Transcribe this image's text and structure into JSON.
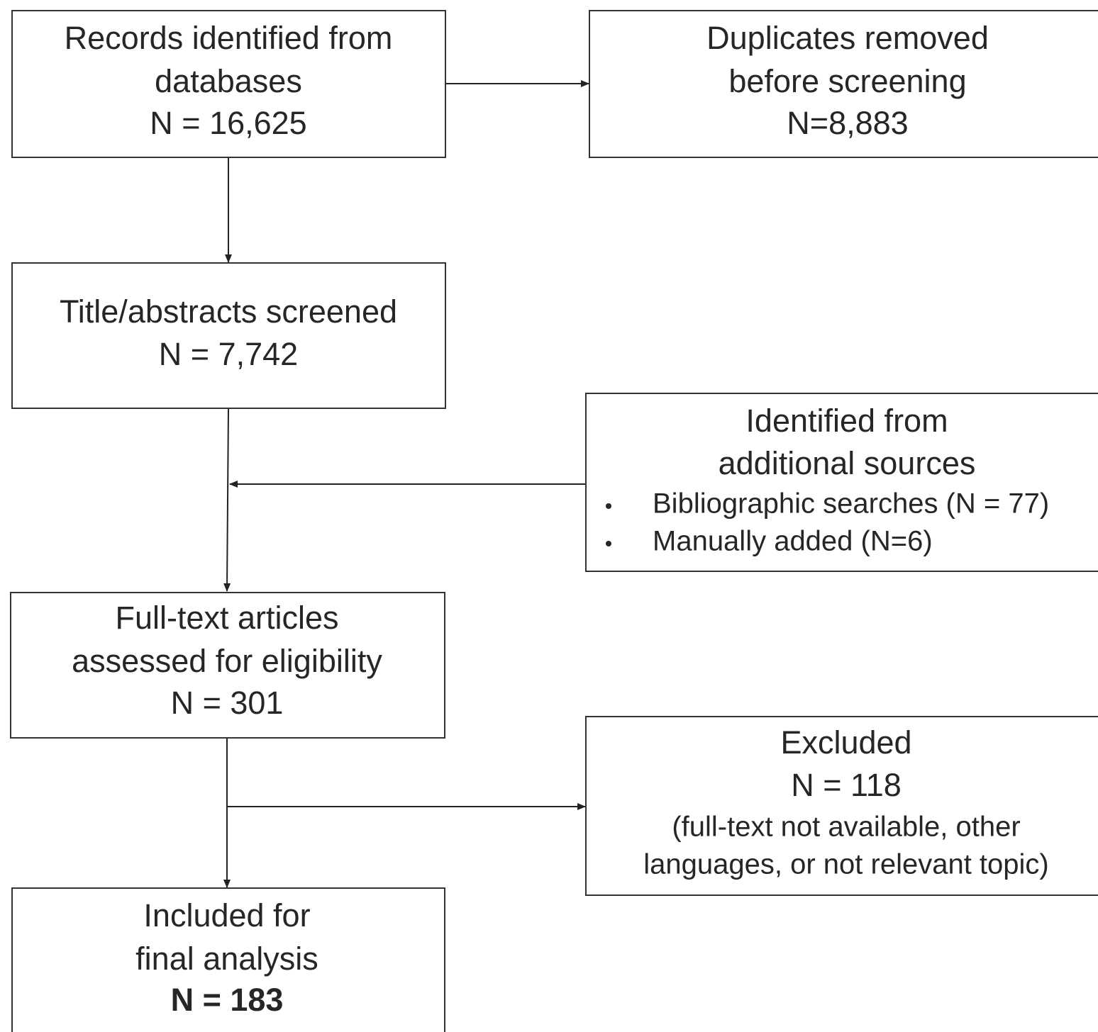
{
  "nodes": [
    {
      "lines": [
        "Records identified from",
        "databases",
        "N = 16,625"
      ]
    },
    {
      "lines": [
        "Duplicates removed",
        "before screening",
        "N=8,883"
      ]
    },
    {
      "lines": [
        "Title/abstracts screened",
        "N = 7,742"
      ]
    },
    {
      "lines": [
        "Identified from",
        "additional sources"
      ],
      "bullets": [
        "Bibliographic searches (N = 77)",
        "Manually added (N=6)"
      ]
    },
    {
      "lines": [
        "Full-text articles",
        "assessed for eligibility",
        "N = 301"
      ]
    },
    {
      "lines": [
        "Excluded",
        "N = 118",
        "(full-text not available, other",
        "languages, or not relevant topic)"
      ]
    },
    {
      "lines": [
        "Included for",
        "final analysis",
        "N = 183"
      ]
    }
  ]
}
